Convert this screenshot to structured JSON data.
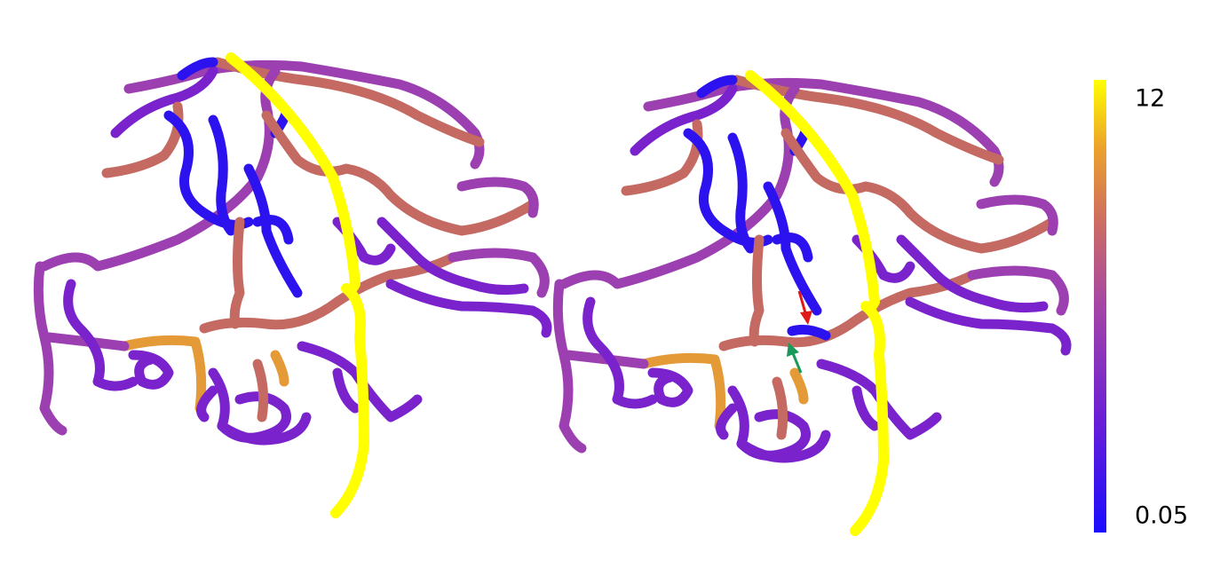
{
  "colorbar": {
    "max_label": "12",
    "min_label": "0.05"
  }
}
